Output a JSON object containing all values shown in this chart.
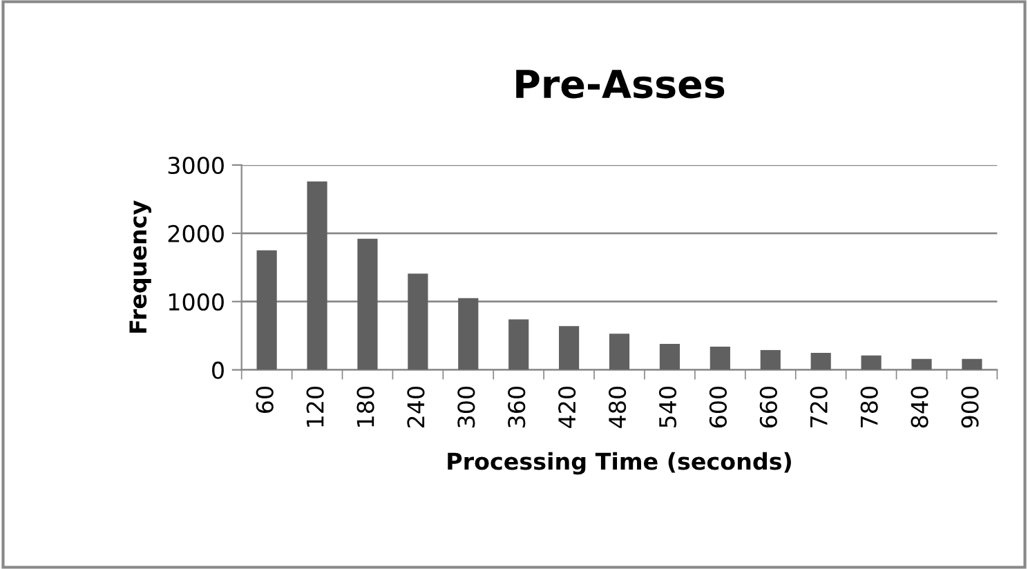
{
  "chart_data": {
    "type": "bar",
    "title": "Pre-Asses",
    "xlabel": "Processing Time (seconds)",
    "ylabel": "Frequency",
    "categories": [
      "60",
      "120",
      "180",
      "240",
      "300",
      "360",
      "420",
      "480",
      "540",
      "600",
      "660",
      "720",
      "780",
      "840",
      "900"
    ],
    "series": [
      {
        "color": "#606060",
        "values": [
          1750,
          2760,
          1920,
          1410,
          1050,
          740,
          640,
          530,
          380,
          340,
          290,
          250,
          210,
          160,
          160
        ]
      }
    ],
    "ylim": [
      0,
      3000
    ],
    "yticks": [
      0,
      1000,
      2000,
      3000
    ],
    "grid": "y"
  }
}
